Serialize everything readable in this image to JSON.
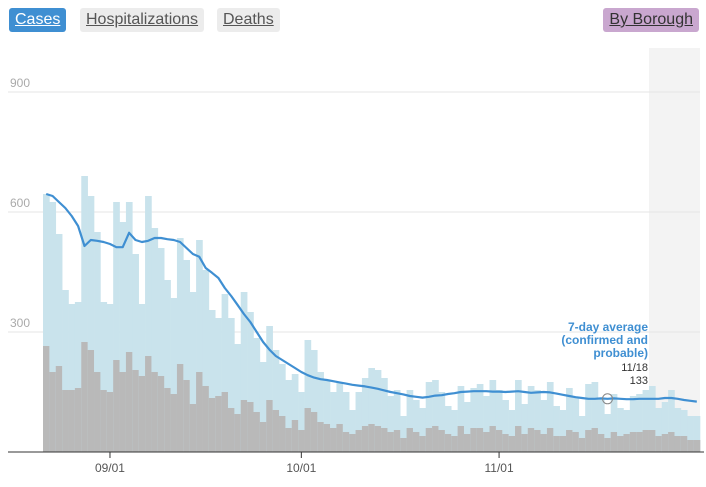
{
  "tabs": {
    "cases": "Cases",
    "hospitalizations": "Hospitalizations",
    "deaths": "Deaths",
    "by_borough": "By Borough"
  },
  "colors": {
    "total_bar": "#c9e3ec",
    "probable_bar": "#b9b9b9",
    "avg_line": "#3f8fd2",
    "highlight": "#f3f3f3",
    "active_tab": "#3f8fd2",
    "borough_tab": "#c9a7cf"
  },
  "chart_data": {
    "type": "bar",
    "x_start": "2020-08-22",
    "x_ticks": [
      "09/01",
      "10/01",
      "11/01"
    ],
    "y_ticks": [
      "300",
      "600",
      "900"
    ],
    "ylim": [
      0,
      1000
    ],
    "series": [
      {
        "values": [
          645,
          625,
          545,
          405,
          370,
          375,
          690,
          640,
          550,
          375,
          370,
          625,
          575,
          625,
          495,
          370,
          640,
          560,
          510,
          430,
          385,
          535,
          480,
          400,
          530,
          455,
          355,
          335,
          395,
          335,
          270,
          400,
          350,
          285,
          225,
          315,
          255,
          220,
          180,
          195,
          150,
          280,
          255,
          200,
          180,
          150,
          175,
          150,
          105,
          150,
          185,
          210,
          205,
          185,
          140,
          155,
          90,
          155,
          130,
          110,
          175,
          180,
          150,
          115,
          105,
          165,
          125,
          160,
          170,
          140,
          180,
          155,
          130,
          105,
          180,
          120,
          165,
          155,
          130,
          175,
          115,
          105,
          160,
          135,
          90,
          170,
          175,
          135,
          95,
          145,
          110,
          105,
          140,
          145,
          155,
          165,
          110,
          125,
          155,
          110,
          105,
          90,
          90
        ]
      },
      {
        "values": [
          265,
          200,
          215,
          155,
          155,
          160,
          275,
          255,
          200,
          155,
          150,
          230,
          200,
          250,
          205,
          190,
          240,
          200,
          190,
          160,
          145,
          220,
          180,
          120,
          200,
          165,
          135,
          140,
          150,
          110,
          95,
          130,
          125,
          100,
          75,
          130,
          105,
          90,
          60,
          80,
          55,
          110,
          100,
          75,
          70,
          60,
          70,
          50,
          45,
          55,
          65,
          70,
          65,
          60,
          50,
          55,
          35,
          60,
          50,
          40,
          60,
          65,
          55,
          45,
          40,
          65,
          45,
          60,
          60,
          50,
          65,
          55,
          45,
          40,
          65,
          45,
          60,
          55,
          45,
          60,
          40,
          40,
          55,
          50,
          35,
          55,
          60,
          45,
          35,
          50,
          40,
          45,
          50,
          50,
          55,
          55,
          40,
          45,
          50,
          40,
          40,
          30,
          30
        ]
      },
      {
        "values": [
          645,
          640,
          625,
          610,
          590,
          565,
          515,
          530,
          528,
          525,
          520,
          512,
          512,
          548,
          530,
          525,
          528,
          535,
          535,
          532,
          530,
          525,
          510,
          495,
          488,
          460,
          448,
          435,
          410,
          390,
          368,
          345,
          325,
          300,
          275,
          256,
          240,
          230,
          220,
          210,
          200,
          192,
          186,
          182,
          180,
          177,
          174,
          171,
          168,
          166,
          164,
          161,
          158,
          154,
          150,
          147,
          144,
          140,
          138,
          136,
          138,
          141,
          142,
          145,
          147,
          150,
          151,
          152,
          152,
          152,
          151,
          151,
          150,
          151,
          152,
          150,
          148,
          149,
          150,
          149,
          146,
          143,
          140,
          137,
          135,
          133,
          133,
          134,
          133,
          134,
          133,
          132,
          132,
          133,
          133,
          133,
          133,
          135,
          135,
          133,
          130,
          128,
          126
        ]
      }
    ],
    "annotation": {
      "title_lines": [
        "7-day average",
        "(confirmed and",
        "probable)"
      ],
      "date": "11/18",
      "value": "133"
    }
  }
}
